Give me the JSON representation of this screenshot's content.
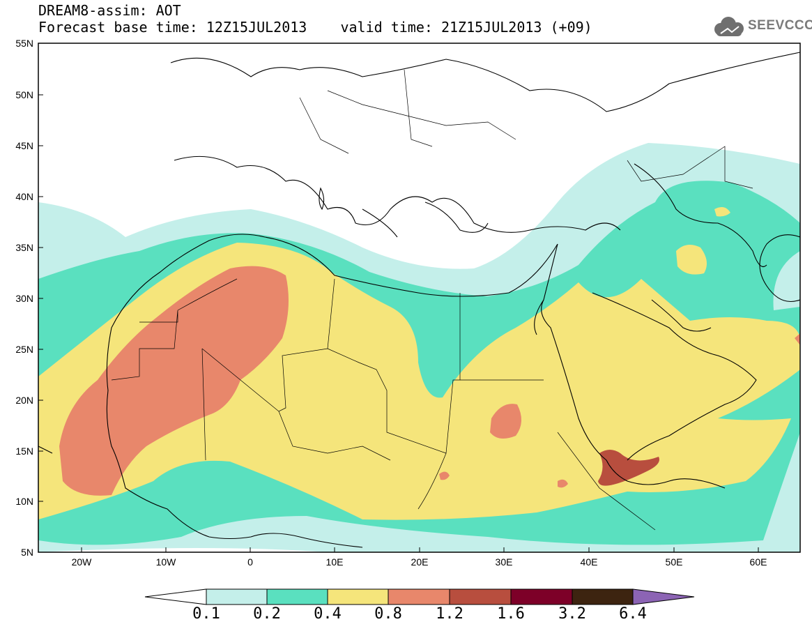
{
  "title": "DREAM8-assim: AOT",
  "subtitle": "Forecast base time: 12Z15JUL2013    valid time: 21Z15JUL2013 (+09)",
  "logo": {
    "text": "SEEVCCC",
    "icon": "cloud-icon"
  },
  "map": {
    "lat_labels": [
      "55N",
      "50N",
      "45N",
      "40N",
      "35N",
      "30N",
      "25N",
      "20N",
      "15N",
      "10N",
      "5N"
    ],
    "lon_labels": [
      "20W",
      "10W",
      "0",
      "10E",
      "20E",
      "30E",
      "40E",
      "50E",
      "60E"
    ],
    "lat_range": [
      5,
      55
    ],
    "lon_range": [
      -25,
      65
    ],
    "variable": "AOT"
  },
  "colorbar": {
    "levels": [
      "0.1",
      "0.2",
      "0.4",
      "0.8",
      "1.2",
      "1.6",
      "3.2",
      "6.4"
    ],
    "colors": [
      "#ffffff",
      "#c4efea",
      "#5ae0bf",
      "#f5e57b",
      "#e8876b",
      "#b84e3e",
      "#7d0028",
      "#3d2410",
      "#8c64b4"
    ]
  }
}
